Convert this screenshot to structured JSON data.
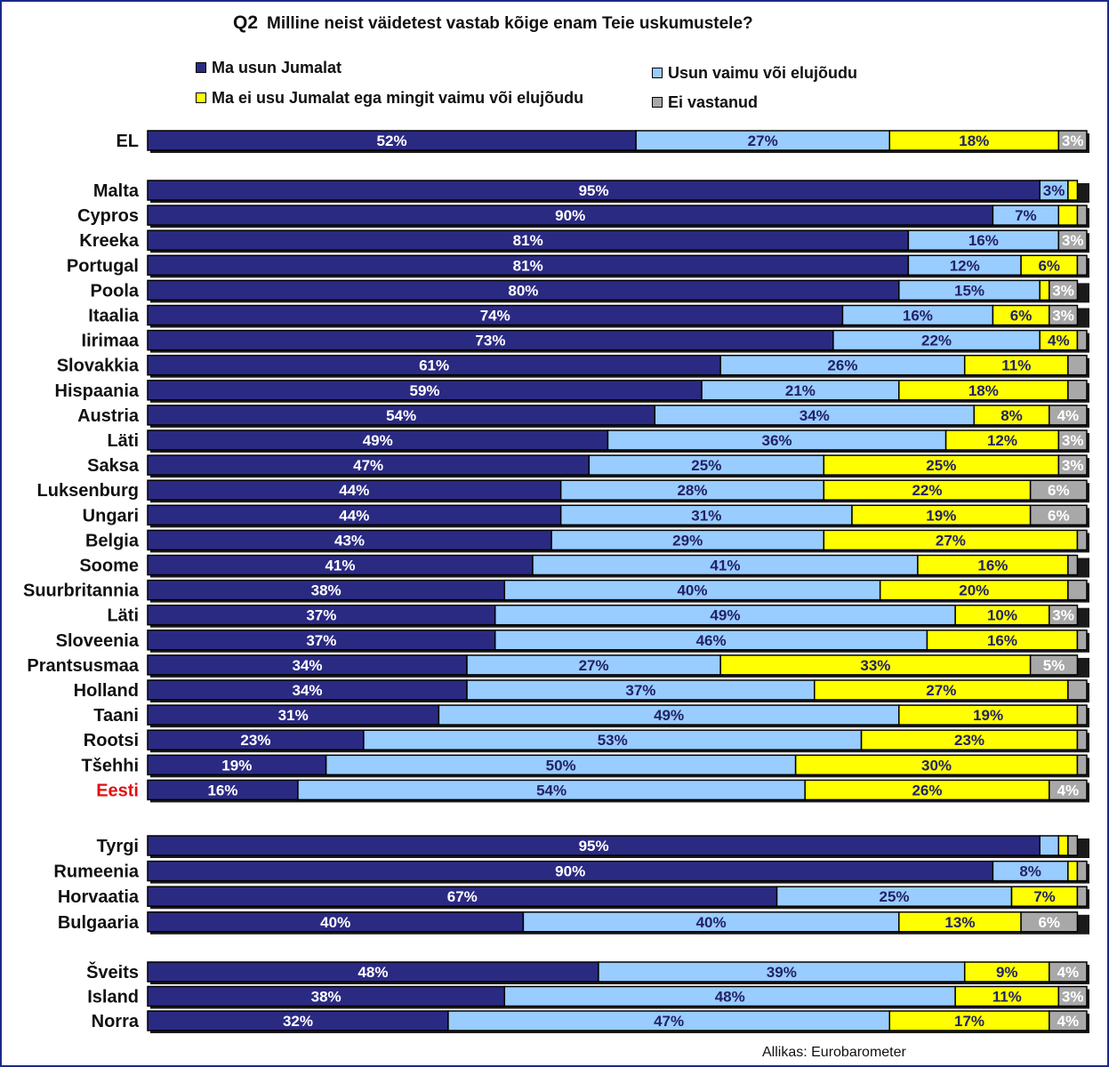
{
  "title": {
    "code": "Q2",
    "text": "Milline neist väidetest vastab kõige enam Teie uskumustele?"
  },
  "source": "Allikas: Eurobarometer",
  "colors": {
    "believe_god": "#2b2a83",
    "spirit": "#99ccff",
    "neither": "#ffff00",
    "no_answer": "#a8a8a8",
    "highlight_label": "#e01010"
  },
  "chart_data": {
    "type": "bar",
    "orientation": "horizontal",
    "stacked": true,
    "percent_scale": [
      0,
      100
    ],
    "legend_position": "top",
    "series": [
      {
        "name": "Ma usun Jumalat",
        "color": "#2b2a83"
      },
      {
        "name": "Usun vaimu või elujõudu",
        "color": "#99ccff"
      },
      {
        "name": "Ma ei usu Jumalat ega mingit vaimu või elujõudu",
        "color": "#ffff00"
      },
      {
        "name": "Ei vastanud",
        "color": "#a8a8a8"
      }
    ],
    "legend_order": [
      0,
      2,
      1,
      3
    ],
    "groups": [
      {
        "rows": [
          {
            "country": "EL",
            "values": [
              52,
              27,
              18,
              3
            ],
            "labels": [
              "52%",
              "27%",
              "18%",
              "3%"
            ]
          }
        ]
      },
      {
        "rows": [
          {
            "country": "Malta",
            "values": [
              95,
              3,
              1,
              0
            ],
            "labels": [
              "95%",
              "3%",
              "",
              ""
            ]
          },
          {
            "country": "Cypros",
            "values": [
              90,
              7,
              2,
              1
            ],
            "labels": [
              "90%",
              "7%",
              "",
              ""
            ]
          },
          {
            "country": "Kreeka",
            "values": [
              81,
              16,
              0,
              3
            ],
            "labels": [
              "81%",
              "16%",
              "",
              "3%"
            ]
          },
          {
            "country": "Portugal",
            "values": [
              81,
              12,
              6,
              1
            ],
            "labels": [
              "81%",
              "12%",
              "6%",
              ""
            ]
          },
          {
            "country": "Poola",
            "values": [
              80,
              15,
              1,
              3
            ],
            "labels": [
              "80%",
              "15%",
              "",
              "3%"
            ]
          },
          {
            "country": "Itaalia",
            "values": [
              74,
              16,
              6,
              3
            ],
            "labels": [
              "74%",
              "16%",
              "6%",
              "3%"
            ]
          },
          {
            "country": "Iirimaa",
            "values": [
              73,
              22,
              4,
              1
            ],
            "labels": [
              "73%",
              "22%",
              "4%",
              ""
            ]
          },
          {
            "country": "Slovakkia",
            "values": [
              61,
              26,
              11,
              2
            ],
            "labels": [
              "61%",
              "26%",
              "11%",
              ""
            ]
          },
          {
            "country": "Hispaania",
            "values": [
              59,
              21,
              18,
              2
            ],
            "labels": [
              "59%",
              "21%",
              "18%",
              ""
            ]
          },
          {
            "country": "Austria",
            "values": [
              54,
              34,
              8,
              4
            ],
            "labels": [
              "54%",
              "34%",
              "8%",
              "4%"
            ]
          },
          {
            "country": "Läti",
            "values": [
              49,
              36,
              12,
              3
            ],
            "labels": [
              "49%",
              "36%",
              "12%",
              "3%"
            ]
          },
          {
            "country": "Saksa",
            "values": [
              47,
              25,
              25,
              3
            ],
            "labels": [
              "47%",
              "25%",
              "25%",
              "3%"
            ]
          },
          {
            "country": "Luksenburg",
            "values": [
              44,
              28,
              22,
              6
            ],
            "labels": [
              "44%",
              "28%",
              "22%",
              "6%"
            ]
          },
          {
            "country": "Ungari",
            "values": [
              44,
              31,
              19,
              6
            ],
            "labels": [
              "44%",
              "31%",
              "19%",
              "6%"
            ]
          },
          {
            "country": "Belgia",
            "values": [
              43,
              29,
              27,
              1
            ],
            "labels": [
              "43%",
              "29%",
              "27%",
              ""
            ]
          },
          {
            "country": "Soome",
            "values": [
              41,
              41,
              16,
              1
            ],
            "labels": [
              "41%",
              "41%",
              "16%",
              ""
            ]
          },
          {
            "country": "Suurbritannia",
            "values": [
              38,
              40,
              20,
              2
            ],
            "labels": [
              "38%",
              "40%",
              "20%",
              ""
            ]
          },
          {
            "country": "Läti",
            "values": [
              37,
              49,
              10,
              3
            ],
            "labels": [
              "37%",
              "49%",
              "10%",
              "3%"
            ]
          },
          {
            "country": "Sloveenia",
            "values": [
              37,
              46,
              16,
              1
            ],
            "labels": [
              "37%",
              "46%",
              "16%",
              ""
            ]
          },
          {
            "country": "Prantsusmaa",
            "values": [
              34,
              27,
              33,
              5
            ],
            "labels": [
              "34%",
              "27%",
              "33%",
              "5%"
            ]
          },
          {
            "country": "Holland",
            "values": [
              34,
              37,
              27,
              2
            ],
            "labels": [
              "34%",
              "37%",
              "27%",
              ""
            ]
          },
          {
            "country": "Taani",
            "values": [
              31,
              49,
              19,
              1
            ],
            "labels": [
              "31%",
              "49%",
              "19%",
              ""
            ]
          },
          {
            "country": "Rootsi",
            "values": [
              23,
              53,
              23,
              1
            ],
            "labels": [
              "23%",
              "53%",
              "23%",
              ""
            ]
          },
          {
            "country": "Tšehhi",
            "values": [
              19,
              50,
              30,
              1
            ],
            "labels": [
              "19%",
              "50%",
              "30%",
              ""
            ]
          },
          {
            "country": "Eesti",
            "values": [
              16,
              54,
              26,
              4
            ],
            "labels": [
              "16%",
              "54%",
              "26%",
              "4%"
            ],
            "highlight": true
          }
        ]
      },
      {
        "rows": [
          {
            "country": "Tyrgi",
            "values": [
              95,
              2,
              1,
              1
            ],
            "labels": [
              "95%",
              "",
              "",
              ""
            ]
          },
          {
            "country": "Rumeenia",
            "values": [
              90,
              8,
              1,
              1
            ],
            "labels": [
              "90%",
              "8%",
              "",
              ""
            ]
          },
          {
            "country": "Horvaatia",
            "values": [
              67,
              25,
              7,
              1
            ],
            "labels": [
              "67%",
              "25%",
              "7%",
              ""
            ]
          },
          {
            "country": "Bulgaaria",
            "values": [
              40,
              40,
              13,
              6
            ],
            "labels": [
              "40%",
              "40%",
              "13%",
              "6%"
            ]
          }
        ]
      },
      {
        "rows": [
          {
            "country": "Šveits",
            "values": [
              48,
              39,
              9,
              4
            ],
            "labels": [
              "48%",
              "39%",
              "9%",
              "4%"
            ]
          },
          {
            "country": "Island",
            "values": [
              38,
              48,
              11,
              3
            ],
            "labels": [
              "38%",
              "48%",
              "11%",
              "3%"
            ]
          },
          {
            "country": "Norra",
            "values": [
              32,
              47,
              17,
              4
            ],
            "labels": [
              "32%",
              "47%",
              "17%",
              "4%"
            ]
          }
        ]
      }
    ]
  }
}
